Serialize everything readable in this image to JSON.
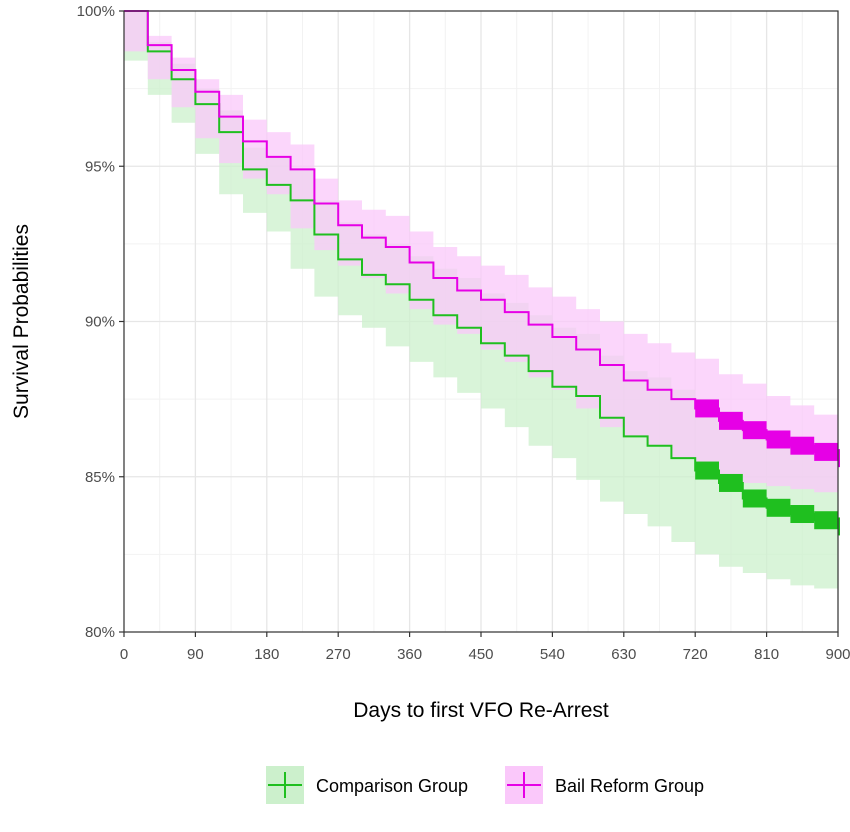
{
  "chart_data": {
    "type": "line",
    "xlabel": "Days to first VFO Re-Arrest",
    "ylabel": "Survival Probabilities",
    "xlim": [
      0,
      900
    ],
    "ylim": [
      80,
      100
    ],
    "x_ticks": [
      0,
      90,
      180,
      270,
      360,
      450,
      540,
      630,
      720,
      810,
      900
    ],
    "y_ticks": [
      80,
      85,
      90,
      95,
      100
    ],
    "y_tick_labels": [
      "80%",
      "85%",
      "90%",
      "95%",
      "100%"
    ],
    "grid": true,
    "legend_position": "bottom",
    "series": [
      {
        "name": "Comparison Group",
        "color": "#1fbf1f",
        "band_color": "#ccf0cc",
        "x": [
          0,
          30,
          60,
          90,
          120,
          150,
          180,
          210,
          240,
          270,
          300,
          330,
          360,
          390,
          420,
          450,
          480,
          510,
          540,
          570,
          600,
          630,
          660,
          690,
          720,
          750,
          780,
          810,
          840,
          870,
          900
        ],
        "y": [
          100,
          98.7,
          97.8,
          97.0,
          96.1,
          94.9,
          94.4,
          93.9,
          92.8,
          92.0,
          91.5,
          91.2,
          90.7,
          90.2,
          89.8,
          89.3,
          88.9,
          88.4,
          87.9,
          87.6,
          86.9,
          86.3,
          86.0,
          85.6,
          85.2,
          84.8,
          84.3,
          84.0,
          83.8,
          83.6,
          83.4
        ],
        "lower": [
          100,
          98.4,
          97.3,
          96.4,
          95.4,
          94.1,
          93.5,
          92.9,
          91.7,
          90.8,
          90.2,
          89.8,
          89.2,
          88.7,
          88.2,
          87.7,
          87.2,
          86.6,
          86.0,
          85.6,
          84.9,
          84.2,
          83.8,
          83.4,
          82.9,
          82.5,
          82.1,
          81.9,
          81.7,
          81.5,
          81.4
        ],
        "upper": [
          100,
          99.0,
          98.3,
          97.5,
          96.8,
          95.6,
          95.3,
          94.9,
          93.9,
          93.2,
          92.8,
          92.5,
          92.1,
          91.7,
          91.4,
          90.9,
          90.6,
          90.2,
          89.8,
          89.6,
          88.9,
          88.4,
          88.2,
          87.8,
          87.5,
          87.1,
          86.5,
          86.1,
          85.9,
          85.7,
          85.4
        ]
      },
      {
        "name": "Bail Reform Group",
        "color": "#e600e6",
        "band_color": "#fac8fa",
        "x": [
          0,
          30,
          60,
          90,
          120,
          150,
          180,
          210,
          240,
          270,
          300,
          330,
          360,
          390,
          420,
          450,
          480,
          510,
          540,
          570,
          600,
          630,
          660,
          690,
          720,
          750,
          780,
          810,
          840,
          870,
          900
        ],
        "y": [
          100,
          98.9,
          98.1,
          97.4,
          96.6,
          95.8,
          95.3,
          94.9,
          93.8,
          93.1,
          92.7,
          92.4,
          91.9,
          91.4,
          91.0,
          90.7,
          90.3,
          89.9,
          89.5,
          89.1,
          88.6,
          88.1,
          87.8,
          87.5,
          87.2,
          86.8,
          86.5,
          86.2,
          86.0,
          85.8,
          85.6
        ],
        "lower": [
          100,
          98.7,
          97.8,
          96.9,
          95.9,
          95.1,
          94.6,
          94.1,
          93.0,
          92.3,
          91.8,
          91.4,
          90.9,
          90.4,
          89.9,
          89.6,
          89.1,
          88.7,
          88.2,
          87.8,
          87.2,
          86.6,
          86.3,
          86.0,
          85.6,
          85.3,
          85.0,
          84.8,
          84.7,
          84.6,
          84.5
        ],
        "upper": [
          100,
          99.2,
          98.5,
          97.8,
          97.3,
          96.5,
          96.1,
          95.7,
          94.6,
          93.9,
          93.6,
          93.4,
          92.9,
          92.4,
          92.1,
          91.8,
          91.5,
          91.1,
          90.8,
          90.4,
          90.0,
          89.6,
          89.3,
          89.0,
          88.8,
          88.3,
          88.0,
          87.6,
          87.3,
          87.0,
          86.8
        ]
      }
    ]
  }
}
